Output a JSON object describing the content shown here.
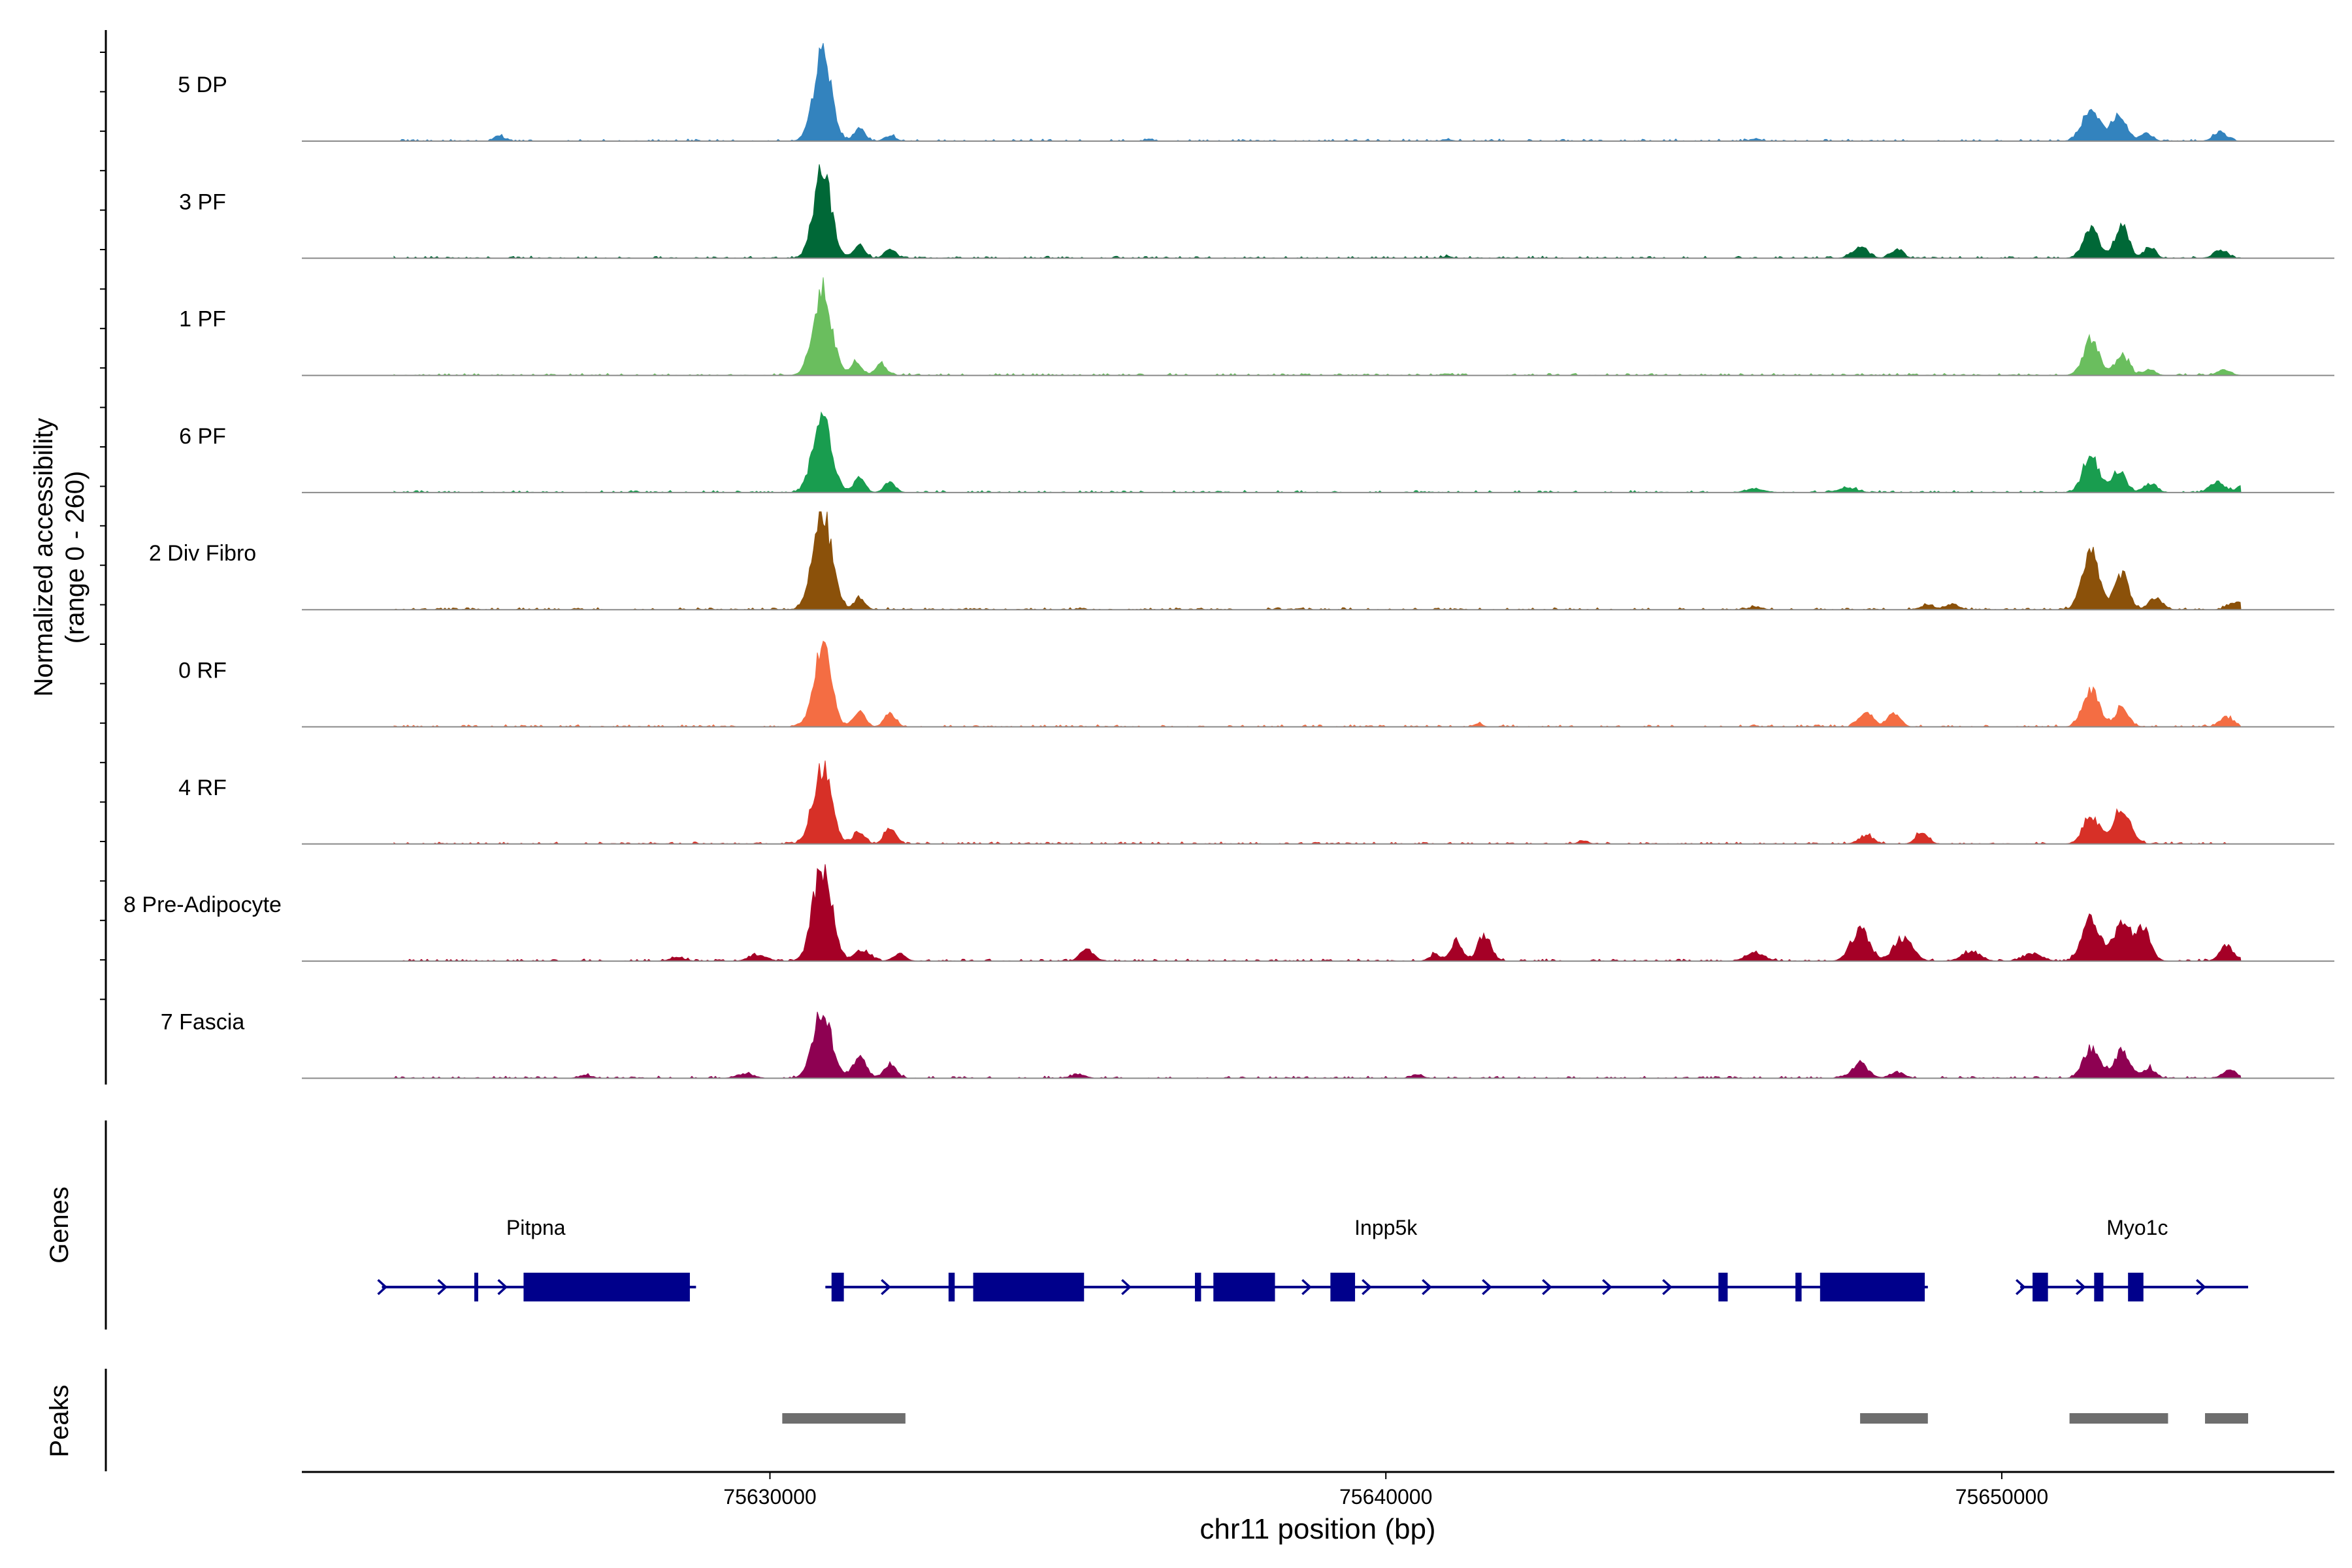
{
  "chart_data": {
    "type": "area",
    "subtype": "genome-coverage-track",
    "y_axis_title": "Normalized accessibility",
    "y_axis_subtitle": "(range 0 - 260)",
    "y_range": [
      0,
      260
    ],
    "x_axis_title": "chr11 position (bp)",
    "x_range": [
      75622400,
      75655400
    ],
    "x_ticks": [
      {
        "value": 75630000,
        "label": "75630000"
      },
      {
        "value": 75640000,
        "label": "75640000"
      },
      {
        "value": 75650000,
        "label": "75650000"
      }
    ],
    "groups": [
      {
        "name": "5 DP",
        "color": "#3383BE",
        "peaks": [
          [
            75630850,
            230,
            140
          ],
          [
            75631450,
            35,
            90
          ],
          [
            75631950,
            14,
            90
          ],
          [
            75625600,
            14,
            80
          ],
          [
            75651450,
            88,
            140
          ],
          [
            75651900,
            70,
            120
          ],
          [
            75652350,
            22,
            90
          ],
          [
            75653550,
            22,
            110
          ],
          [
            75636150,
            6,
            60
          ],
          [
            75641000,
            5,
            70
          ],
          [
            75646000,
            6,
            80
          ]
        ]
      },
      {
        "name": "3 PF",
        "color": "#006837",
        "peaks": [
          [
            75630850,
            230,
            140
          ],
          [
            75631450,
            35,
            90
          ],
          [
            75631950,
            24,
            90
          ],
          [
            75647700,
            28,
            130
          ],
          [
            75648300,
            22,
            100
          ],
          [
            75651450,
            75,
            130
          ],
          [
            75651950,
            85,
            110
          ],
          [
            75652400,
            30,
            90
          ],
          [
            75653550,
            22,
            110
          ],
          [
            75641000,
            5,
            70
          ]
        ]
      },
      {
        "name": "1 PF",
        "color": "#6ABE5E",
        "peaks": [
          [
            75630850,
            225,
            150
          ],
          [
            75631400,
            35,
            90
          ],
          [
            75631800,
            30,
            90
          ],
          [
            75651450,
            90,
            130
          ],
          [
            75651950,
            55,
            110
          ],
          [
            75652400,
            16,
            90
          ],
          [
            75653600,
            14,
            110
          ],
          [
            75641000,
            5,
            70
          ]
        ]
      },
      {
        "name": "6 PF",
        "color": "#199D4F",
        "peaks": [
          [
            75630850,
            200,
            150
          ],
          [
            75631450,
            40,
            90
          ],
          [
            75631950,
            28,
            90
          ],
          [
            75651450,
            95,
            130
          ],
          [
            75651900,
            60,
            110
          ],
          [
            75652400,
            22,
            110
          ],
          [
            75653500,
            28,
            120
          ],
          [
            75653950,
            28,
            100
          ],
          [
            75646000,
            10,
            150
          ],
          [
            75647500,
            12,
            150
          ]
        ]
      },
      {
        "name": "2 Div Fibro",
        "color": "#8B510A",
        "peaks": [
          [
            75630850,
            260,
            150
          ],
          [
            75631450,
            30,
            90
          ],
          [
            75651450,
            145,
            140
          ],
          [
            75651950,
            95,
            110
          ],
          [
            75652500,
            30,
            110
          ],
          [
            75653800,
            20,
            120
          ],
          [
            75648800,
            12,
            110
          ],
          [
            75649200,
            14,
            100
          ],
          [
            75646000,
            8,
            100
          ]
        ]
      },
      {
        "name": "0 RF",
        "color": "#F46D43",
        "peaks": [
          [
            75630850,
            205,
            140
          ],
          [
            75631450,
            45,
            90
          ],
          [
            75631950,
            38,
            90
          ],
          [
            75647800,
            42,
            110
          ],
          [
            75648250,
            38,
            100
          ],
          [
            75651450,
            95,
            130
          ],
          [
            75651950,
            50,
            110
          ],
          [
            75653650,
            26,
            110
          ],
          [
            75641500,
            8,
            70
          ]
        ]
      },
      {
        "name": "4 RF",
        "color": "#D73027",
        "peaks": [
          [
            75630850,
            200,
            150
          ],
          [
            75631450,
            32,
            90
          ],
          [
            75631950,
            45,
            90
          ],
          [
            75647800,
            22,
            120
          ],
          [
            75648700,
            30,
            100
          ],
          [
            75651450,
            75,
            130
          ],
          [
            75651950,
            92,
            140
          ],
          [
            75643200,
            8,
            80
          ]
        ]
      },
      {
        "name": "8 Pre-Adipocyte",
        "color": "#A50026",
        "peaks": [
          [
            75630850,
            250,
            150
          ],
          [
            75631500,
            30,
            120
          ],
          [
            75632100,
            20,
            100
          ],
          [
            75628500,
            10,
            120
          ],
          [
            75629800,
            16,
            140
          ],
          [
            75635150,
            30,
            110
          ],
          [
            75641150,
            55,
            90
          ],
          [
            75641600,
            70,
            110
          ],
          [
            75640800,
            18,
            80
          ],
          [
            75647700,
            80,
            150
          ],
          [
            75648400,
            60,
            150
          ],
          [
            75651450,
            115,
            140
          ],
          [
            75651950,
            100,
            140
          ],
          [
            75652300,
            80,
            120
          ],
          [
            75653650,
            42,
            110
          ],
          [
            75654150,
            36,
            100
          ],
          [
            75646000,
            22,
            150
          ],
          [
            75649500,
            24,
            150
          ],
          [
            75650500,
            20,
            150
          ]
        ]
      },
      {
        "name": "7 Fascia",
        "color": "#8E0152",
        "peaks": [
          [
            75630850,
            175,
            150
          ],
          [
            75631450,
            55,
            110
          ],
          [
            75631950,
            36,
            100
          ],
          [
            75629600,
            12,
            140
          ],
          [
            75647700,
            38,
            130
          ],
          [
            75648300,
            16,
            120
          ],
          [
            75651450,
            78,
            130
          ],
          [
            75651950,
            72,
            130
          ],
          [
            75652400,
            26,
            100
          ],
          [
            75653700,
            20,
            110
          ],
          [
            75640500,
            10,
            90
          ],
          [
            75635000,
            10,
            120
          ],
          [
            75627000,
            8,
            100
          ]
        ]
      }
    ],
    "genes_track": {
      "label": "Genes",
      "color": "#00008B",
      "genes": [
        {
          "name": "Pitpna",
          "label_pos": 75626200,
          "start": 75623700,
          "end": 75628800,
          "exons": [
            [
              75625200,
              75625250
            ],
            [
              75626000,
              75628700
            ]
          ]
        },
        {
          "name": "Inpp5k",
          "label_pos": 75640000,
          "start": 75630900,
          "end": 75648800,
          "exons": [
            [
              75631000,
              75631200
            ],
            [
              75632900,
              75633000
            ],
            [
              75633300,
              75635100
            ],
            [
              75636900,
              75637000
            ],
            [
              75637200,
              75638200
            ],
            [
              75639100,
              75639500
            ],
            [
              75645400,
              75645550
            ],
            [
              75646650,
              75646750
            ],
            [
              75647050,
              75648750
            ]
          ]
        },
        {
          "name": "Myo1c",
          "label_pos": 75652200,
          "start": 75650300,
          "end": 75654000,
          "exons": [
            [
              75650500,
              75650750
            ],
            [
              75651500,
              75651650
            ],
            [
              75652050,
              75652300
            ]
          ]
        }
      ]
    },
    "peaks_track": {
      "label": "Peaks",
      "color": "#6E6E6E",
      "regions": [
        [
          75630200,
          75632200
        ],
        [
          75647700,
          75648800
        ],
        [
          75651100,
          75652700
        ],
        [
          75653300,
          75654000
        ]
      ]
    }
  }
}
